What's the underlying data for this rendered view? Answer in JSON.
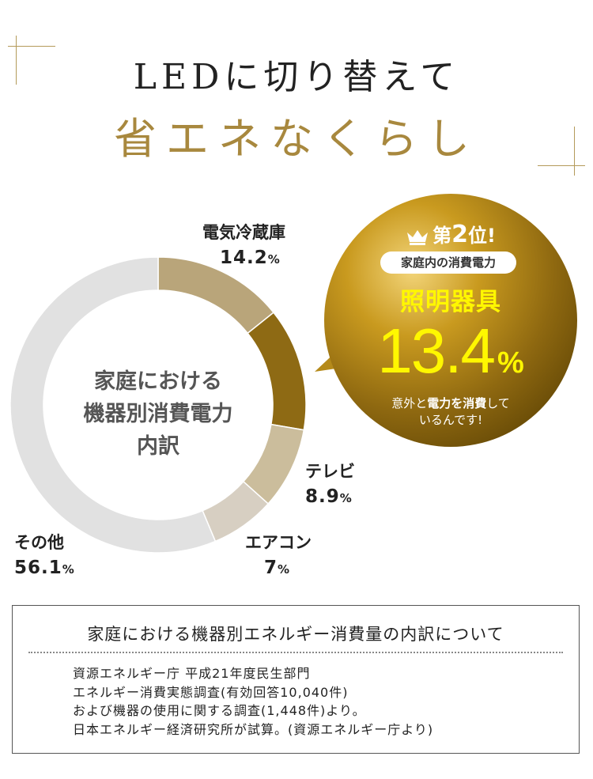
{
  "header": {
    "title_line1": "LEDに切り替えて",
    "title_line2": "省エネなくらし"
  },
  "colors": {
    "accent": "#a8883e",
    "fridge": "#b9a57a",
    "light": "#8e6a14",
    "tv": "#cbbd9c",
    "aircon": "#d7cfc2",
    "other": "#e1e1e1",
    "badge_highlight": "#fff700"
  },
  "chart_data": {
    "type": "pie",
    "title": "家庭における機器別消費電力内訳",
    "center_label": [
      "家庭における",
      "機器別消費電力",
      "内訳"
    ],
    "slices": [
      {
        "name": "電気冷蔵庫",
        "value": 14.2,
        "value_label": "14.2",
        "unit": "%"
      },
      {
        "name": "照明器具",
        "value": 13.4,
        "value_label": "13.4",
        "unit": "%"
      },
      {
        "name": "テレビ",
        "value": 8.9,
        "value_label": "8.9",
        "unit": "%"
      },
      {
        "name": "エアコン",
        "value": 7,
        "value_label": "7",
        "unit": "%"
      },
      {
        "name": "その他",
        "value": 56.1,
        "value_label": "56.1",
        "unit": "%"
      }
    ]
  },
  "badge": {
    "rank_prefix": "第",
    "rank_number": "2",
    "rank_suffix": "位!",
    "subtitle": "家庭内の消費電力",
    "item": "照明器具",
    "value": "13.4",
    "unit": "%",
    "note_part1": "意外と",
    "note_bold1": "電力を消費",
    "note_part2": "して",
    "note_line2": "いるんです!"
  },
  "note": {
    "title": "家庭における機器別エネルギー消費量の内訳について",
    "lines": [
      "資源エネルギー庁 平成21年度民生部門",
      "エネルギー消費実態調査(有効回答10,040件)",
      "および機器の使用に関する調査(1,448件)より。",
      "日本エネルギー経済研究所が試算。(資源エネルギー庁より)"
    ]
  }
}
